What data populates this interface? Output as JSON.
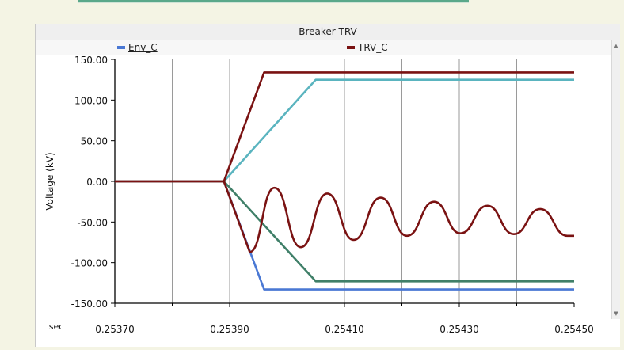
{
  "window": {
    "title": "Breaker TRV"
  },
  "colors": {
    "env_a": "#4a78d4",
    "env_b": "#3f7f68",
    "env_c": "#5ab4bf",
    "trv": "#7a1212"
  },
  "chart_data": {
    "type": "line",
    "title": "Breaker TRV",
    "xlabel": "sec",
    "ylabel": "Voltage (kV)",
    "xlim": [
      0.2537,
      0.2545
    ],
    "ylim": [
      -150,
      150
    ],
    "xticks": [
      "0.25370",
      "0.25390",
      "0.25410",
      "0.25430",
      "0.25450"
    ],
    "xtick_values": [
      0.2537,
      0.2539,
      0.2541,
      0.2543,
      0.2545
    ],
    "yticks": [
      "150.00",
      "100.00",
      "50.00",
      "0.00",
      "-50.00",
      "-100.00",
      "-150.00"
    ],
    "ytick_values": [
      150,
      100,
      50,
      0,
      -50,
      -100,
      -150
    ],
    "grid": true,
    "legend": [
      {
        "name": "Env_C",
        "color": "#4a78d4"
      },
      {
        "name": "TRV_C",
        "color": "#7a1212"
      }
    ],
    "series": [
      {
        "name": "Env_C",
        "color": "#4a78d4",
        "x": [
          0.2537,
          0.25389,
          0.25396,
          0.2545
        ],
        "y": [
          0,
          0,
          -133,
          -133
        ]
      },
      {
        "name": "",
        "color": "#3f7f68",
        "x": [
          0.2537,
          0.25389,
          0.25405,
          0.2545
        ],
        "y": [
          0,
          0,
          -123,
          -123
        ]
      },
      {
        "name": "",
        "color": "#5ab4bf",
        "x": [
          0.2537,
          0.25389,
          0.25405,
          0.2545
        ],
        "y": [
          0,
          0,
          125,
          125
        ]
      },
      {
        "name": "",
        "color": "#7a1212",
        "x": [
          0.2537,
          0.25389,
          0.25396,
          0.2545
        ],
        "y": [
          0,
          0,
          134,
          134
        ]
      },
      {
        "name": "TRV_C",
        "color": "#7a1212",
        "x": [
          0.2537,
          0.25389,
          0.253935,
          0.253978,
          0.254024,
          0.25407,
          0.254116,
          0.254163,
          0.254209,
          0.254256,
          0.254302,
          0.254349,
          0.254395,
          0.254441,
          0.254488,
          0.2545
        ],
        "y": [
          0,
          0,
          -87,
          -8,
          -81,
          -15,
          -72,
          -20,
          -67,
          -25,
          -64,
          -30,
          -65,
          -34,
          -67,
          -67
        ]
      }
    ]
  }
}
